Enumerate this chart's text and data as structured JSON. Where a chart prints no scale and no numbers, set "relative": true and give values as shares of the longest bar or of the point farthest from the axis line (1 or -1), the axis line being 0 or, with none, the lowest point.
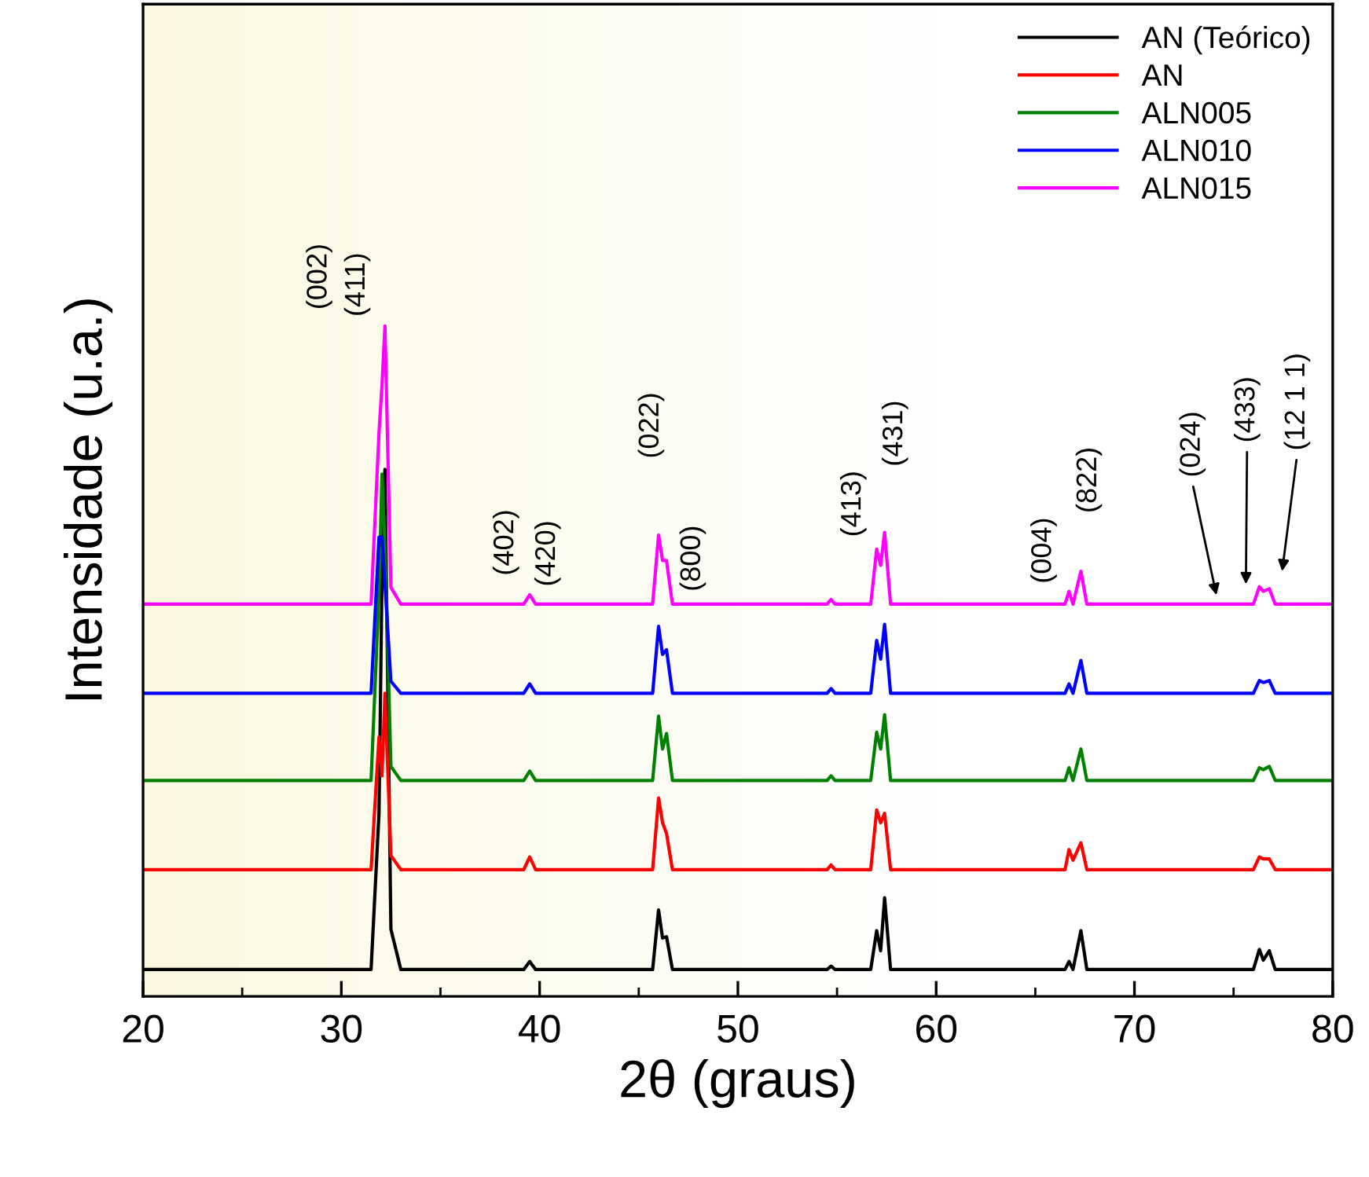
{
  "chart_data": {
    "type": "line",
    "relative": true,
    "xlabel": "2θ (graus)",
    "ylabel": "Intensidade (u.a.)",
    "xlim": [
      20,
      80
    ],
    "xticks": [
      20,
      30,
      40,
      50,
      60,
      70,
      80
    ],
    "grid": false,
    "legend": "top right",
    "tick_labels": "x",
    "x": [
      20,
      31.5,
      31.9,
      32.05,
      32.2,
      32.5,
      33,
      39.2,
      39.5,
      39.8,
      45.7,
      46.0,
      46.2,
      46.4,
      46.7,
      54.5,
      54.7,
      54.9,
      56.7,
      57.0,
      57.2,
      57.4,
      57.7,
      66.5,
      66.7,
      66.9,
      67.3,
      67.6,
      76.0,
      76.3,
      76.5,
      76.8,
      77.1,
      80
    ],
    "series": [
      {
        "name": "AN (Teórico)",
        "color": "#000000",
        "values": [
          0.04,
          0.04,
          0.273,
          0.623,
          0.786,
          0.1,
          0.04,
          0.04,
          0.052,
          0.04,
          0.04,
          0.129,
          0.087,
          0.089,
          0.04,
          0.04,
          0.045,
          0.04,
          0.04,
          0.098,
          0.068,
          0.147,
          0.04,
          0.04,
          0.052,
          0.04,
          0.098,
          0.04,
          0.04,
          0.07,
          0.054,
          0.068,
          0.04,
          0.04
        ]
      },
      {
        "name": "AN",
        "color": "#ff0000",
        "values": [
          0.189,
          0.189,
          0.387,
          0.329,
          0.452,
          0.21,
          0.189,
          0.189,
          0.208,
          0.189,
          0.189,
          0.296,
          0.259,
          0.243,
          0.189,
          0.189,
          0.196,
          0.189,
          0.189,
          0.278,
          0.259,
          0.273,
          0.189,
          0.189,
          0.219,
          0.203,
          0.229,
          0.189,
          0.189,
          0.208,
          0.205,
          0.205,
          0.189,
          0.189
        ]
      },
      {
        "name": "ALN005",
        "color": "#008000",
        "values": [
          0.322,
          0.322,
          0.602,
          0.779,
          0.672,
          0.343,
          0.322,
          0.322,
          0.336,
          0.322,
          0.322,
          0.418,
          0.369,
          0.392,
          0.322,
          0.322,
          0.329,
          0.322,
          0.322,
          0.394,
          0.369,
          0.42,
          0.322,
          0.322,
          0.341,
          0.322,
          0.369,
          0.322,
          0.322,
          0.341,
          0.338,
          0.343,
          0.322,
          0.322
        ]
      },
      {
        "name": "ALN010",
        "color": "#0000ff",
        "values": [
          0.452,
          0.452,
          0.685,
          0.685,
          0.615,
          0.47,
          0.452,
          0.452,
          0.466,
          0.452,
          0.452,
          0.552,
          0.51,
          0.517,
          0.452,
          0.452,
          0.459,
          0.452,
          0.452,
          0.531,
          0.503,
          0.555,
          0.452,
          0.452,
          0.466,
          0.452,
          0.501,
          0.452,
          0.452,
          0.471,
          0.468,
          0.471,
          0.452,
          0.452
        ]
      },
      {
        "name": "ALN015",
        "color": "#ff00ff",
        "values": [
          0.585,
          0.585,
          0.841,
          0.911,
          1.0,
          0.61,
          0.585,
          0.585,
          0.599,
          0.585,
          0.585,
          0.688,
          0.65,
          0.65,
          0.585,
          0.585,
          0.592,
          0.585,
          0.585,
          0.667,
          0.643,
          0.692,
          0.585,
          0.585,
          0.604,
          0.585,
          0.634,
          0.585,
          0.585,
          0.611,
          0.604,
          0.608,
          0.585,
          0.585
        ]
      }
    ],
    "annotations": [
      "(002)",
      "(411)",
      "(402)",
      "(420)",
      "(022)",
      "(800)",
      "(413)",
      "(431)",
      "(004)",
      "(822)",
      "(024)",
      "(433)",
      "(12 1 1)"
    ]
  }
}
